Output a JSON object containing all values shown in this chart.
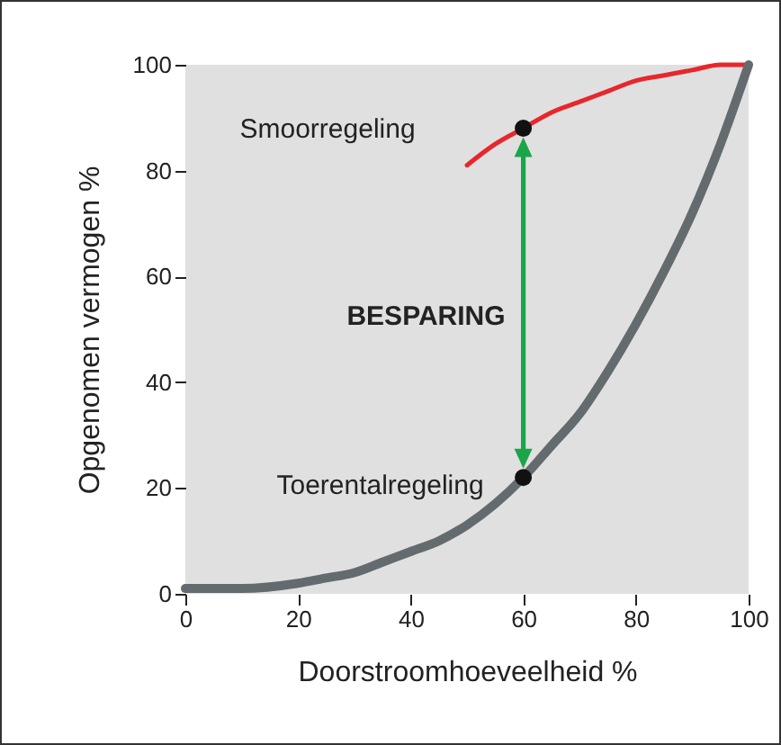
{
  "chart_data": {
    "type": "line",
    "xlabel": "Doorstroomhoeveelheid %",
    "ylabel": "Opgenomen vermogen %",
    "xlim": [
      0,
      100
    ],
    "ylim": [
      0,
      100
    ],
    "xticks": [
      0,
      20,
      40,
      60,
      80,
      100
    ],
    "yticks": [
      0,
      20,
      40,
      60,
      80,
      100
    ],
    "grid": false,
    "annotations": [
      "BESPARING"
    ],
    "series": [
      {
        "name": "Smoorregeling",
        "type": "line",
        "color": "#e8262b",
        "x": [
          50,
          55,
          60,
          65,
          70,
          75,
          80,
          85,
          90,
          95,
          100
        ],
        "values": [
          81,
          85,
          88,
          91,
          93,
          95,
          97,
          98,
          99,
          100,
          100
        ]
      },
      {
        "name": "Toerentalregeling",
        "type": "line",
        "color": "#646b6e",
        "x": [
          0,
          10,
          20,
          25,
          30,
          35,
          40,
          45,
          50,
          55,
          60,
          65,
          70,
          75,
          80,
          85,
          90,
          95,
          100
        ],
        "values": [
          1,
          1,
          2,
          3,
          4,
          6,
          8,
          10,
          13,
          17,
          22,
          28,
          34,
          42,
          51,
          61,
          72,
          85,
          100
        ]
      },
      {
        "type": "scatter",
        "marker": "circle",
        "color": "#111111",
        "x": [
          60,
          60
        ],
        "values": [
          88,
          22
        ]
      }
    ]
  }
}
